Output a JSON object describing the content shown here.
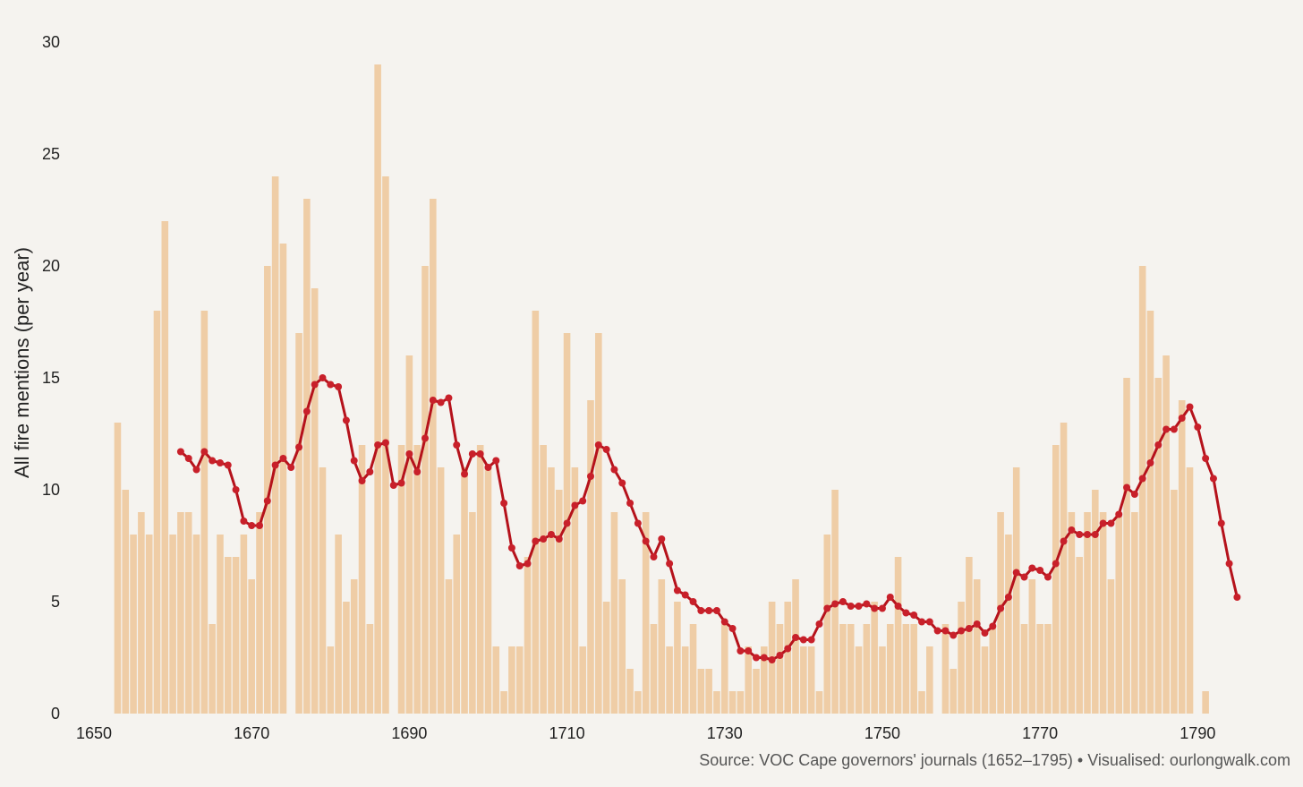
{
  "chart_data": {
    "type": "bar",
    "title": "",
    "xlabel": "",
    "ylabel": "All fire mentions (per year)",
    "xlim": [
      1650,
      1797
    ],
    "ylim": [
      0,
      30
    ],
    "x_ticks": [
      1650,
      1670,
      1690,
      1710,
      1730,
      1750,
      1770,
      1790
    ],
    "y_ticks": [
      0,
      5,
      10,
      15,
      20,
      25,
      30
    ],
    "grid": false,
    "legend": "none",
    "colors": {
      "bars": "#efcda6",
      "line": "#b5121b",
      "background": "#f5f3ef"
    },
    "series": [
      {
        "kind": "bar",
        "x": [
          1653,
          1654,
          1655,
          1656,
          1657,
          1658,
          1659,
          1660,
          1661,
          1662,
          1663,
          1664,
          1665,
          1666,
          1667,
          1668,
          1669,
          1670,
          1671,
          1672,
          1673,
          1674,
          1675,
          1676,
          1677,
          1678,
          1679,
          1680,
          1681,
          1682,
          1683,
          1684,
          1685,
          1686,
          1687,
          1688,
          1689,
          1690,
          1691,
          1692,
          1693,
          1694,
          1695,
          1696,
          1697,
          1698,
          1699,
          1700,
          1701,
          1702,
          1703,
          1704,
          1705,
          1706,
          1707,
          1708,
          1709,
          1710,
          1711,
          1712,
          1713,
          1714,
          1715,
          1716,
          1717,
          1718,
          1719,
          1720,
          1721,
          1722,
          1723,
          1724,
          1725,
          1726,
          1727,
          1728,
          1729,
          1730,
          1731,
          1732,
          1733,
          1734,
          1735,
          1736,
          1737,
          1738,
          1739,
          1740,
          1741,
          1742,
          1743,
          1744,
          1745,
          1746,
          1747,
          1748,
          1749,
          1750,
          1751,
          1752,
          1753,
          1754,
          1755,
          1756,
          1757,
          1758,
          1759,
          1760,
          1761,
          1762,
          1763,
          1764,
          1765,
          1766,
          1767,
          1768,
          1769,
          1770,
          1771,
          1772,
          1773,
          1774,
          1775,
          1776,
          1777,
          1778,
          1779,
          1780,
          1781,
          1782,
          1783,
          1784,
          1785,
          1786,
          1787,
          1788,
          1789,
          1790,
          1791,
          1792,
          1793,
          1794,
          1795
        ],
        "values": [
          13,
          10,
          8,
          9,
          8,
          18,
          22,
          8,
          9,
          9,
          8,
          18,
          4,
          8,
          7,
          7,
          8,
          6,
          9,
          20,
          24,
          21,
          0,
          17,
          23,
          19,
          11,
          3,
          8,
          5,
          6,
          12,
          4,
          29,
          24,
          0,
          12,
          16,
          12,
          20,
          23,
          11,
          6,
          8,
          11,
          9,
          12,
          11,
          3,
          1,
          3,
          3,
          7,
          18,
          12,
          11,
          10,
          17,
          11,
          3,
          14,
          17,
          5,
          9,
          6,
          2,
          1,
          9,
          4,
          6,
          3,
          5,
          3,
          4,
          2,
          2,
          1,
          4,
          1,
          1,
          3,
          2,
          3,
          5,
          4,
          5,
          6,
          3,
          3,
          1,
          8,
          10,
          4,
          4,
          3,
          4,
          5,
          3,
          4,
          7,
          4,
          4,
          1,
          3,
          0,
          4,
          2,
          5,
          7,
          6,
          3,
          4,
          9,
          8,
          11,
          4,
          6,
          4,
          4,
          12,
          13,
          9,
          7,
          9,
          10,
          9,
          6,
          9,
          15,
          9,
          20,
          18,
          15,
          16,
          10,
          14,
          11,
          0,
          1,
          0,
          0,
          0,
          0
        ]
      },
      {
        "kind": "line",
        "x": [
          1661,
          1662,
          1663,
          1664,
          1665,
          1666,
          1667,
          1668,
          1669,
          1670,
          1671,
          1672,
          1673,
          1674,
          1675,
          1676,
          1677,
          1678,
          1679,
          1680,
          1681,
          1682,
          1683,
          1684,
          1685,
          1686,
          1687,
          1688,
          1689,
          1690,
          1691,
          1692,
          1693,
          1694,
          1695,
          1696,
          1697,
          1698,
          1699,
          1700,
          1701,
          1702,
          1703,
          1704,
          1705,
          1706,
          1707,
          1708,
          1709,
          1710,
          1711,
          1712,
          1713,
          1714,
          1715,
          1716,
          1717,
          1718,
          1719,
          1720,
          1721,
          1722,
          1723,
          1724,
          1725,
          1726,
          1727,
          1728,
          1729,
          1730,
          1731,
          1732,
          1733,
          1734,
          1735,
          1736,
          1737,
          1738,
          1739,
          1740,
          1741,
          1742,
          1743,
          1744,
          1745,
          1746,
          1747,
          1748,
          1749,
          1750,
          1751,
          1752,
          1753,
          1754,
          1755,
          1756,
          1757,
          1758,
          1759,
          1760,
          1761,
          1762,
          1763,
          1764,
          1765,
          1766,
          1767,
          1768,
          1769,
          1770,
          1771,
          1772,
          1773,
          1774,
          1775,
          1776,
          1777,
          1778,
          1779,
          1780,
          1781,
          1782,
          1783,
          1784,
          1785,
          1786,
          1787,
          1788,
          1789,
          1790,
          1791,
          1792,
          1793,
          1794,
          1795
        ],
        "values": [
          11.7,
          11.4,
          10.9,
          11.7,
          11.3,
          11.2,
          11.1,
          10.0,
          8.6,
          8.4,
          8.4,
          9.5,
          11.1,
          11.4,
          11.0,
          11.9,
          13.5,
          14.7,
          15.0,
          14.7,
          14.6,
          13.1,
          11.3,
          10.4,
          10.8,
          12.0,
          12.1,
          10.2,
          10.3,
          11.6,
          10.8,
          12.3,
          14.0,
          13.9,
          14.1,
          12.0,
          10.7,
          11.6,
          11.6,
          11.0,
          11.3,
          9.4,
          7.4,
          6.6,
          6.7,
          7.7,
          7.8,
          8.0,
          7.8,
          8.5,
          9.3,
          9.5,
          10.6,
          12.0,
          11.8,
          10.9,
          10.3,
          9.4,
          8.5,
          7.7,
          7.0,
          7.8,
          6.7,
          5.5,
          5.3,
          5.0,
          4.6,
          4.6,
          4.6,
          4.1,
          3.8,
          2.8,
          2.8,
          2.5,
          2.5,
          2.4,
          2.6,
          2.9,
          3.4,
          3.3,
          3.3,
          4.0,
          4.7,
          4.9,
          5.0,
          4.8,
          4.8,
          4.9,
          4.7,
          4.7,
          5.2,
          4.8,
          4.5,
          4.4,
          4.1,
          4.1,
          3.7,
          3.7,
          3.5,
          3.7,
          3.8,
          4.0,
          3.6,
          3.9,
          4.7,
          5.2,
          6.3,
          6.1,
          6.5,
          6.4,
          6.1,
          6.7,
          7.7,
          8.2,
          8.0,
          8.0,
          8.0,
          8.5,
          8.5,
          8.9,
          10.1,
          9.8,
          10.5,
          11.2,
          12.0,
          12.7,
          12.7,
          13.2,
          13.7,
          12.8,
          11.4,
          10.5,
          8.5,
          6.7,
          5.2
        ]
      }
    ]
  },
  "footer": {
    "source": "Source: VOC Cape governors' journals (1652–1795) • Visualised: ourlongwalk.com"
  }
}
